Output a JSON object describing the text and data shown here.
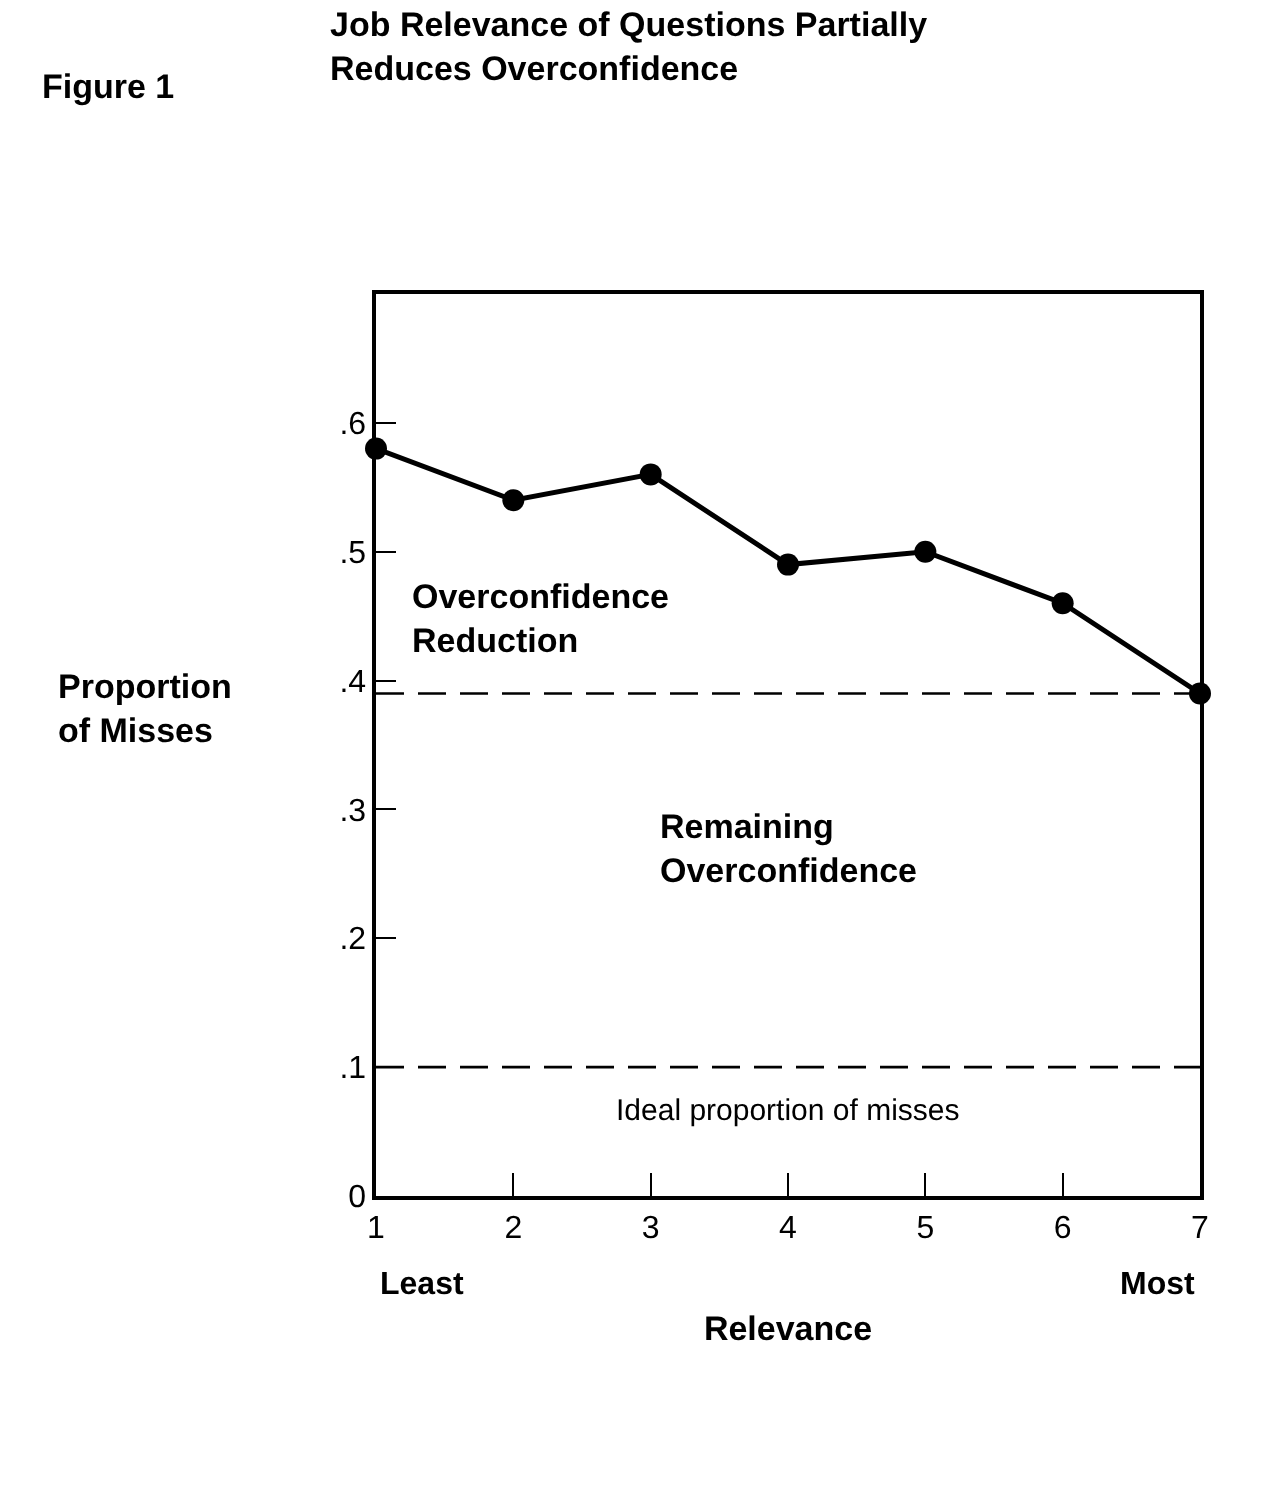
{
  "chart_data": {
    "type": "line",
    "title": "Job Relevance of Questions Partially Reduces Overconfidence",
    "xlabel": "Relevance",
    "ylabel": "Proportion of Misses",
    "x": [
      1,
      2,
      3,
      4,
      5,
      6,
      7
    ],
    "series": [
      {
        "color": "#000000",
        "values": [
          0.58,
          0.54,
          0.56,
          0.49,
          0.5,
          0.46,
          0.39
        ]
      }
    ],
    "xlim": [
      1,
      7
    ],
    "xticks": [
      1,
      2,
      3,
      4,
      5,
      6,
      7
    ],
    "ylim": [
      0,
      0.7
    ],
    "yticks": [
      {
        "value": 0,
        "label": "0"
      },
      {
        "value": 0.1,
        "label": ".1"
      },
      {
        "value": 0.2,
        "label": ".2"
      },
      {
        "value": 0.3,
        "label": ".3"
      },
      {
        "value": 0.4,
        "label": ".4"
      },
      {
        "value": 0.5,
        "label": ".5"
      },
      {
        "value": 0.6,
        "label": ".6"
      }
    ],
    "ref_lines": [
      {
        "axis": "y",
        "value": 0.39,
        "line_style": "dashed",
        "color": "#000000"
      },
      {
        "axis": "y",
        "value": 0.1,
        "line_style": "dashed",
        "color": "#000000"
      }
    ],
    "annotations": [
      "Figure 1",
      "Least",
      "Most",
      "Overconfidence Reduction",
      "Remaining Overconfidence",
      "Ideal proportion of misses"
    ],
    "marker": "circle",
    "line_style": "solid",
    "grid": false
  }
}
